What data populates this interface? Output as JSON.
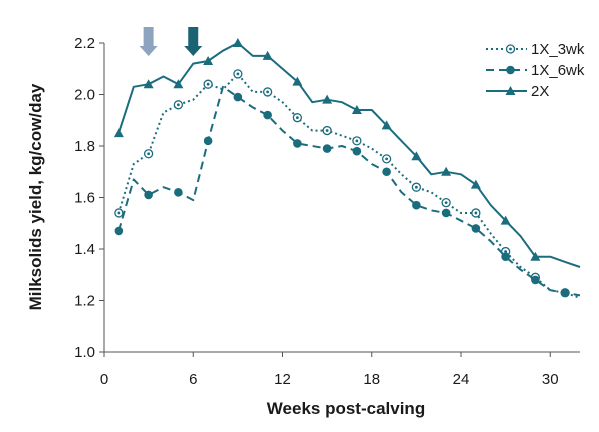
{
  "chart_data": {
    "type": "line",
    "xlabel": "Weeks post-calving",
    "ylabel": "Milksolids yield, kg/cow/day",
    "xlim": [
      0,
      32
    ],
    "ylim": [
      1.0,
      2.2
    ],
    "xticks": [
      0,
      6,
      12,
      18,
      24,
      30
    ],
    "yticks": [
      1.0,
      1.2,
      1.4,
      1.6,
      1.8,
      2.0,
      2.2
    ],
    "xtick_labels": [
      "0",
      "6",
      "12",
      "18",
      "24",
      "30"
    ],
    "ytick_labels": [
      "1.0",
      "1.2",
      "1.4",
      "1.6",
      "1.8",
      "2.0",
      "2.2"
    ],
    "grid": false,
    "legend_position": "top-right",
    "arrows": [
      {
        "x": 3,
        "color": "#8ea3be",
        "meaning": "transition week (1X_3wk)"
      },
      {
        "x": 6,
        "color": "#1b6272",
        "meaning": "transition week (1X_6wk)"
      }
    ],
    "series": [
      {
        "name": "1X_3wk",
        "color": "#1b6d7e",
        "style": "dotted",
        "marker": "open-circle",
        "x": [
          1,
          2,
          3,
          4,
          5,
          6,
          7,
          8,
          9,
          10,
          11,
          12,
          13,
          14,
          15,
          16,
          17,
          18,
          19,
          20,
          21,
          22,
          23,
          24,
          25,
          26,
          27,
          28,
          29,
          30,
          31,
          32
        ],
        "y": [
          1.54,
          1.73,
          1.77,
          1.93,
          1.96,
          1.98,
          2.04,
          2.02,
          2.08,
          2.01,
          2.01,
          1.97,
          1.91,
          1.86,
          1.86,
          1.84,
          1.82,
          1.79,
          1.75,
          1.69,
          1.64,
          1.62,
          1.58,
          1.54,
          1.54,
          1.46,
          1.39,
          1.33,
          1.29,
          1.24,
          1.23,
          1.21
        ],
        "marker_x": [
          1,
          3,
          5,
          7,
          9,
          11,
          13,
          15,
          17,
          19,
          21,
          23,
          25,
          27,
          29,
          31
        ]
      },
      {
        "name": "1X_6wk",
        "color": "#1b6d7e",
        "style": "dashed",
        "marker": "filled-circle",
        "x": [
          1,
          2,
          3,
          4,
          5,
          6,
          7,
          8,
          9,
          10,
          11,
          12,
          13,
          14,
          15,
          16,
          17,
          18,
          19,
          20,
          21,
          22,
          23,
          24,
          25,
          26,
          27,
          28,
          29,
          30,
          31,
          32
        ],
        "y": [
          1.47,
          1.67,
          1.61,
          1.64,
          1.62,
          1.59,
          1.82,
          2.03,
          1.99,
          1.95,
          1.92,
          1.86,
          1.81,
          1.8,
          1.79,
          1.8,
          1.78,
          1.73,
          1.7,
          1.62,
          1.57,
          1.55,
          1.54,
          1.51,
          1.48,
          1.43,
          1.37,
          1.32,
          1.28,
          1.24,
          1.23,
          1.22
        ],
        "marker_x": [
          1,
          3,
          5,
          7,
          9,
          11,
          13,
          15,
          17,
          19,
          21,
          23,
          25,
          27,
          29,
          31
        ]
      },
      {
        "name": "2X",
        "color": "#1b6d7e",
        "style": "solid",
        "marker": "filled-triangle",
        "x": [
          1,
          2,
          3,
          4,
          5,
          6,
          7,
          8,
          9,
          10,
          11,
          12,
          13,
          14,
          15,
          16,
          17,
          18,
          19,
          20,
          21,
          22,
          23,
          24,
          25,
          26,
          27,
          28,
          29,
          30,
          31,
          32
        ],
        "y": [
          1.85,
          2.03,
          2.04,
          2.07,
          2.04,
          2.12,
          2.13,
          2.17,
          2.2,
          2.15,
          2.15,
          2.1,
          2.05,
          1.97,
          1.98,
          1.97,
          1.94,
          1.94,
          1.88,
          1.82,
          1.76,
          1.69,
          1.7,
          1.69,
          1.65,
          1.57,
          1.51,
          1.45,
          1.37,
          1.37,
          1.35,
          1.33
        ],
        "marker_x": [
          1,
          3,
          5,
          7,
          9,
          11,
          13,
          15,
          17,
          19,
          21,
          23,
          25,
          27,
          29
        ]
      }
    ]
  }
}
